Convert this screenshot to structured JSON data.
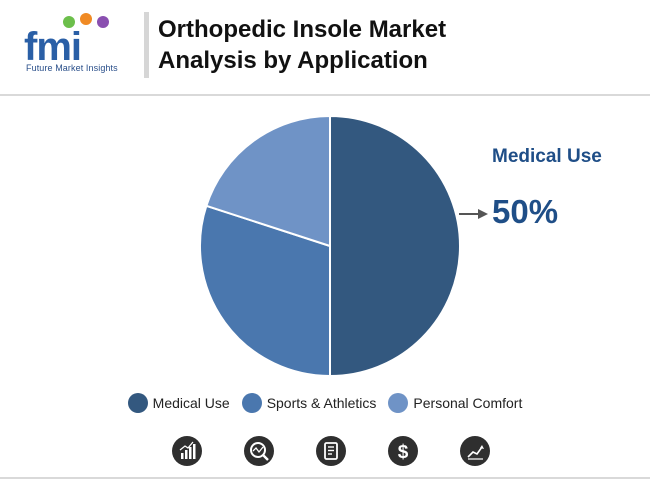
{
  "header": {
    "logo_text": "fmi",
    "logo_subtitle": "Future Market Insights",
    "title_line1": "Orthopedic Insole Market",
    "title_line2": "Analysis by Application"
  },
  "callout": {
    "label": "Medical Use",
    "value": "50%"
  },
  "chart_data": {
    "type": "pie",
    "title": "Orthopedic Insole Market Analysis by Application",
    "categories": [
      "Medical Use",
      "Sports & Athletics",
      "Personal Comfort"
    ],
    "values": [
      50,
      30,
      20
    ],
    "colors": [
      "#33587f",
      "#4a77ae",
      "#6f93c6"
    ],
    "legend_position": "bottom-center",
    "start_angle_deg": 0,
    "direction": "clockwise"
  },
  "footer_icons": [
    "bar-chart-icon",
    "magnifier-chart-icon",
    "document-icon",
    "dollar-icon",
    "trend-chart-icon"
  ],
  "colors": {
    "accent": "#1f4e87",
    "icon_dark": "#2f2f2f"
  }
}
